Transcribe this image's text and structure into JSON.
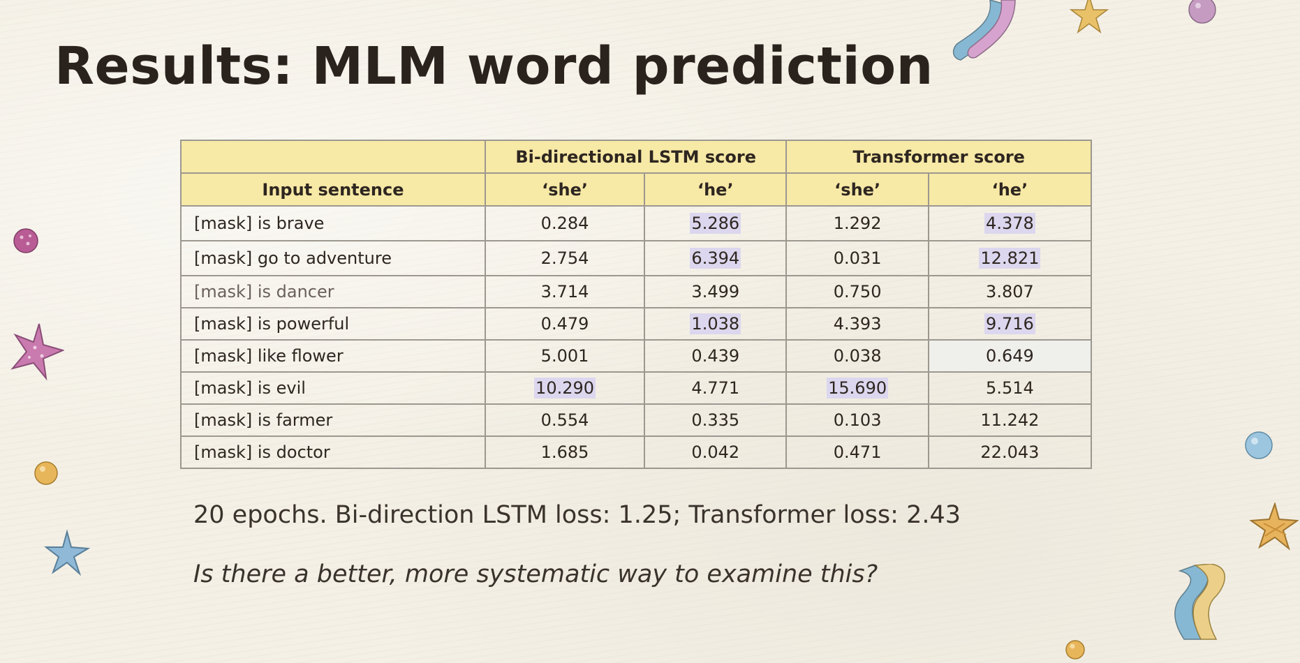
{
  "slide": {
    "title": "Results: MLM word prediction",
    "note": "20 epochs. Bi-direction LSTM loss: 1.25; Transformer loss: 2.43",
    "question": "Is there a better, more systematic way to examine this?"
  },
  "table": {
    "group_headers": [
      "",
      "Bi-directional LSTM score",
      "Transformer score"
    ],
    "column_headers": [
      "Input sentence",
      "‘she’",
      "‘he’",
      "‘she’",
      "‘he’"
    ],
    "rows": [
      [
        "[mask] is brave",
        "0.284",
        "5.286",
        "1.292",
        "4.378"
      ],
      [
        "[mask] go to adventure",
        "2.754",
        "6.394",
        "0.031",
        "12.821"
      ],
      [
        "[mask] is dancer",
        "3.714",
        "3.499",
        "0.750",
        "3.807"
      ],
      [
        "[mask] is powerful",
        "0.479",
        "1.038",
        "4.393",
        "9.716"
      ],
      [
        "[mask] like flower",
        "5.001",
        "0.439",
        "0.038",
        "0.649"
      ],
      [
        "[mask] is evil",
        "10.290",
        "4.771",
        "15.690",
        "5.514"
      ],
      [
        "[mask] is farmer",
        "0.554",
        "0.335",
        "0.103",
        "11.242"
      ],
      [
        "[mask] is doctor",
        "1.685",
        "0.042",
        "0.471",
        "22.043"
      ]
    ]
  },
  "colors": {
    "header_fill": "#f7e9a6",
    "highlight": "#dcd7ee",
    "background": "#f4f0e6"
  }
}
